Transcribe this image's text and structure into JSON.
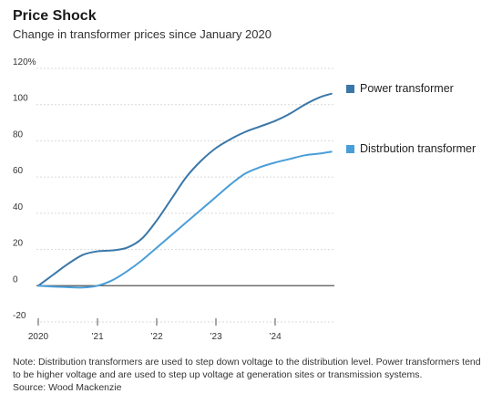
{
  "chart_data": {
    "type": "line",
    "title": "Price Shock",
    "subtitle": "Change in transformer prices since January 2020",
    "xlabel": "",
    "ylabel": "",
    "y_ticks": [
      {
        "value": -20,
        "label": "-20"
      },
      {
        "value": 0,
        "label": "0"
      },
      {
        "value": 20,
        "label": "20"
      },
      {
        "value": 40,
        "label": "40"
      },
      {
        "value": 60,
        "label": "60"
      },
      {
        "value": 80,
        "label": "80"
      },
      {
        "value": 100,
        "label": "100"
      },
      {
        "value": 120,
        "label": "120%"
      }
    ],
    "x_ticks": [
      {
        "value": 2020,
        "label": "2020"
      },
      {
        "value": 2021,
        "label": "’21"
      },
      {
        "value": 2022,
        "label": "’22"
      },
      {
        "value": 2023,
        "label": "’23"
      },
      {
        "value": 2024,
        "label": "’24"
      }
    ],
    "xlim": [
      2020,
      2025
    ],
    "ylim": [
      -20,
      120
    ],
    "grid": true,
    "legend_placement": "right",
    "series": [
      {
        "name": "Power transformer",
        "color": "#3a77a8",
        "x": [
          2020.0,
          2020.25,
          2020.5,
          2020.75,
          2021.0,
          2021.25,
          2021.5,
          2021.75,
          2022.0,
          2022.25,
          2022.5,
          2022.75,
          2023.0,
          2023.25,
          2023.5,
          2023.75,
          2024.0,
          2024.25,
          2024.5,
          2024.75,
          2024.95
        ],
        "values": [
          0,
          6,
          12,
          17,
          19,
          19.5,
          21,
          26,
          36,
          48,
          60,
          69,
          76,
          81,
          85,
          88,
          91,
          95,
          100,
          104,
          106
        ]
      },
      {
        "name": "Distrbution transformer",
        "color": "#4a9ed8",
        "x": [
          2020.0,
          2020.25,
          2020.5,
          2020.75,
          2021.0,
          2021.25,
          2021.5,
          2021.75,
          2022.0,
          2022.25,
          2022.5,
          2022.75,
          2023.0,
          2023.25,
          2023.5,
          2023.75,
          2024.0,
          2024.25,
          2024.5,
          2024.75,
          2024.95
        ],
        "values": [
          0,
          -0.5,
          -0.8,
          -1,
          0,
          3,
          8,
          14,
          21,
          28,
          35,
          42,
          49,
          56,
          62,
          65.5,
          68,
          70,
          72,
          73,
          74
        ]
      }
    ]
  },
  "footnote": "Note: Distribution transformers are used to step down voltage to the distribution level. Power transformers tend to be higher voltage and are used to step up voltage at generation sites or transmission systems.",
  "source": "Source: Wood Mackenzie"
}
